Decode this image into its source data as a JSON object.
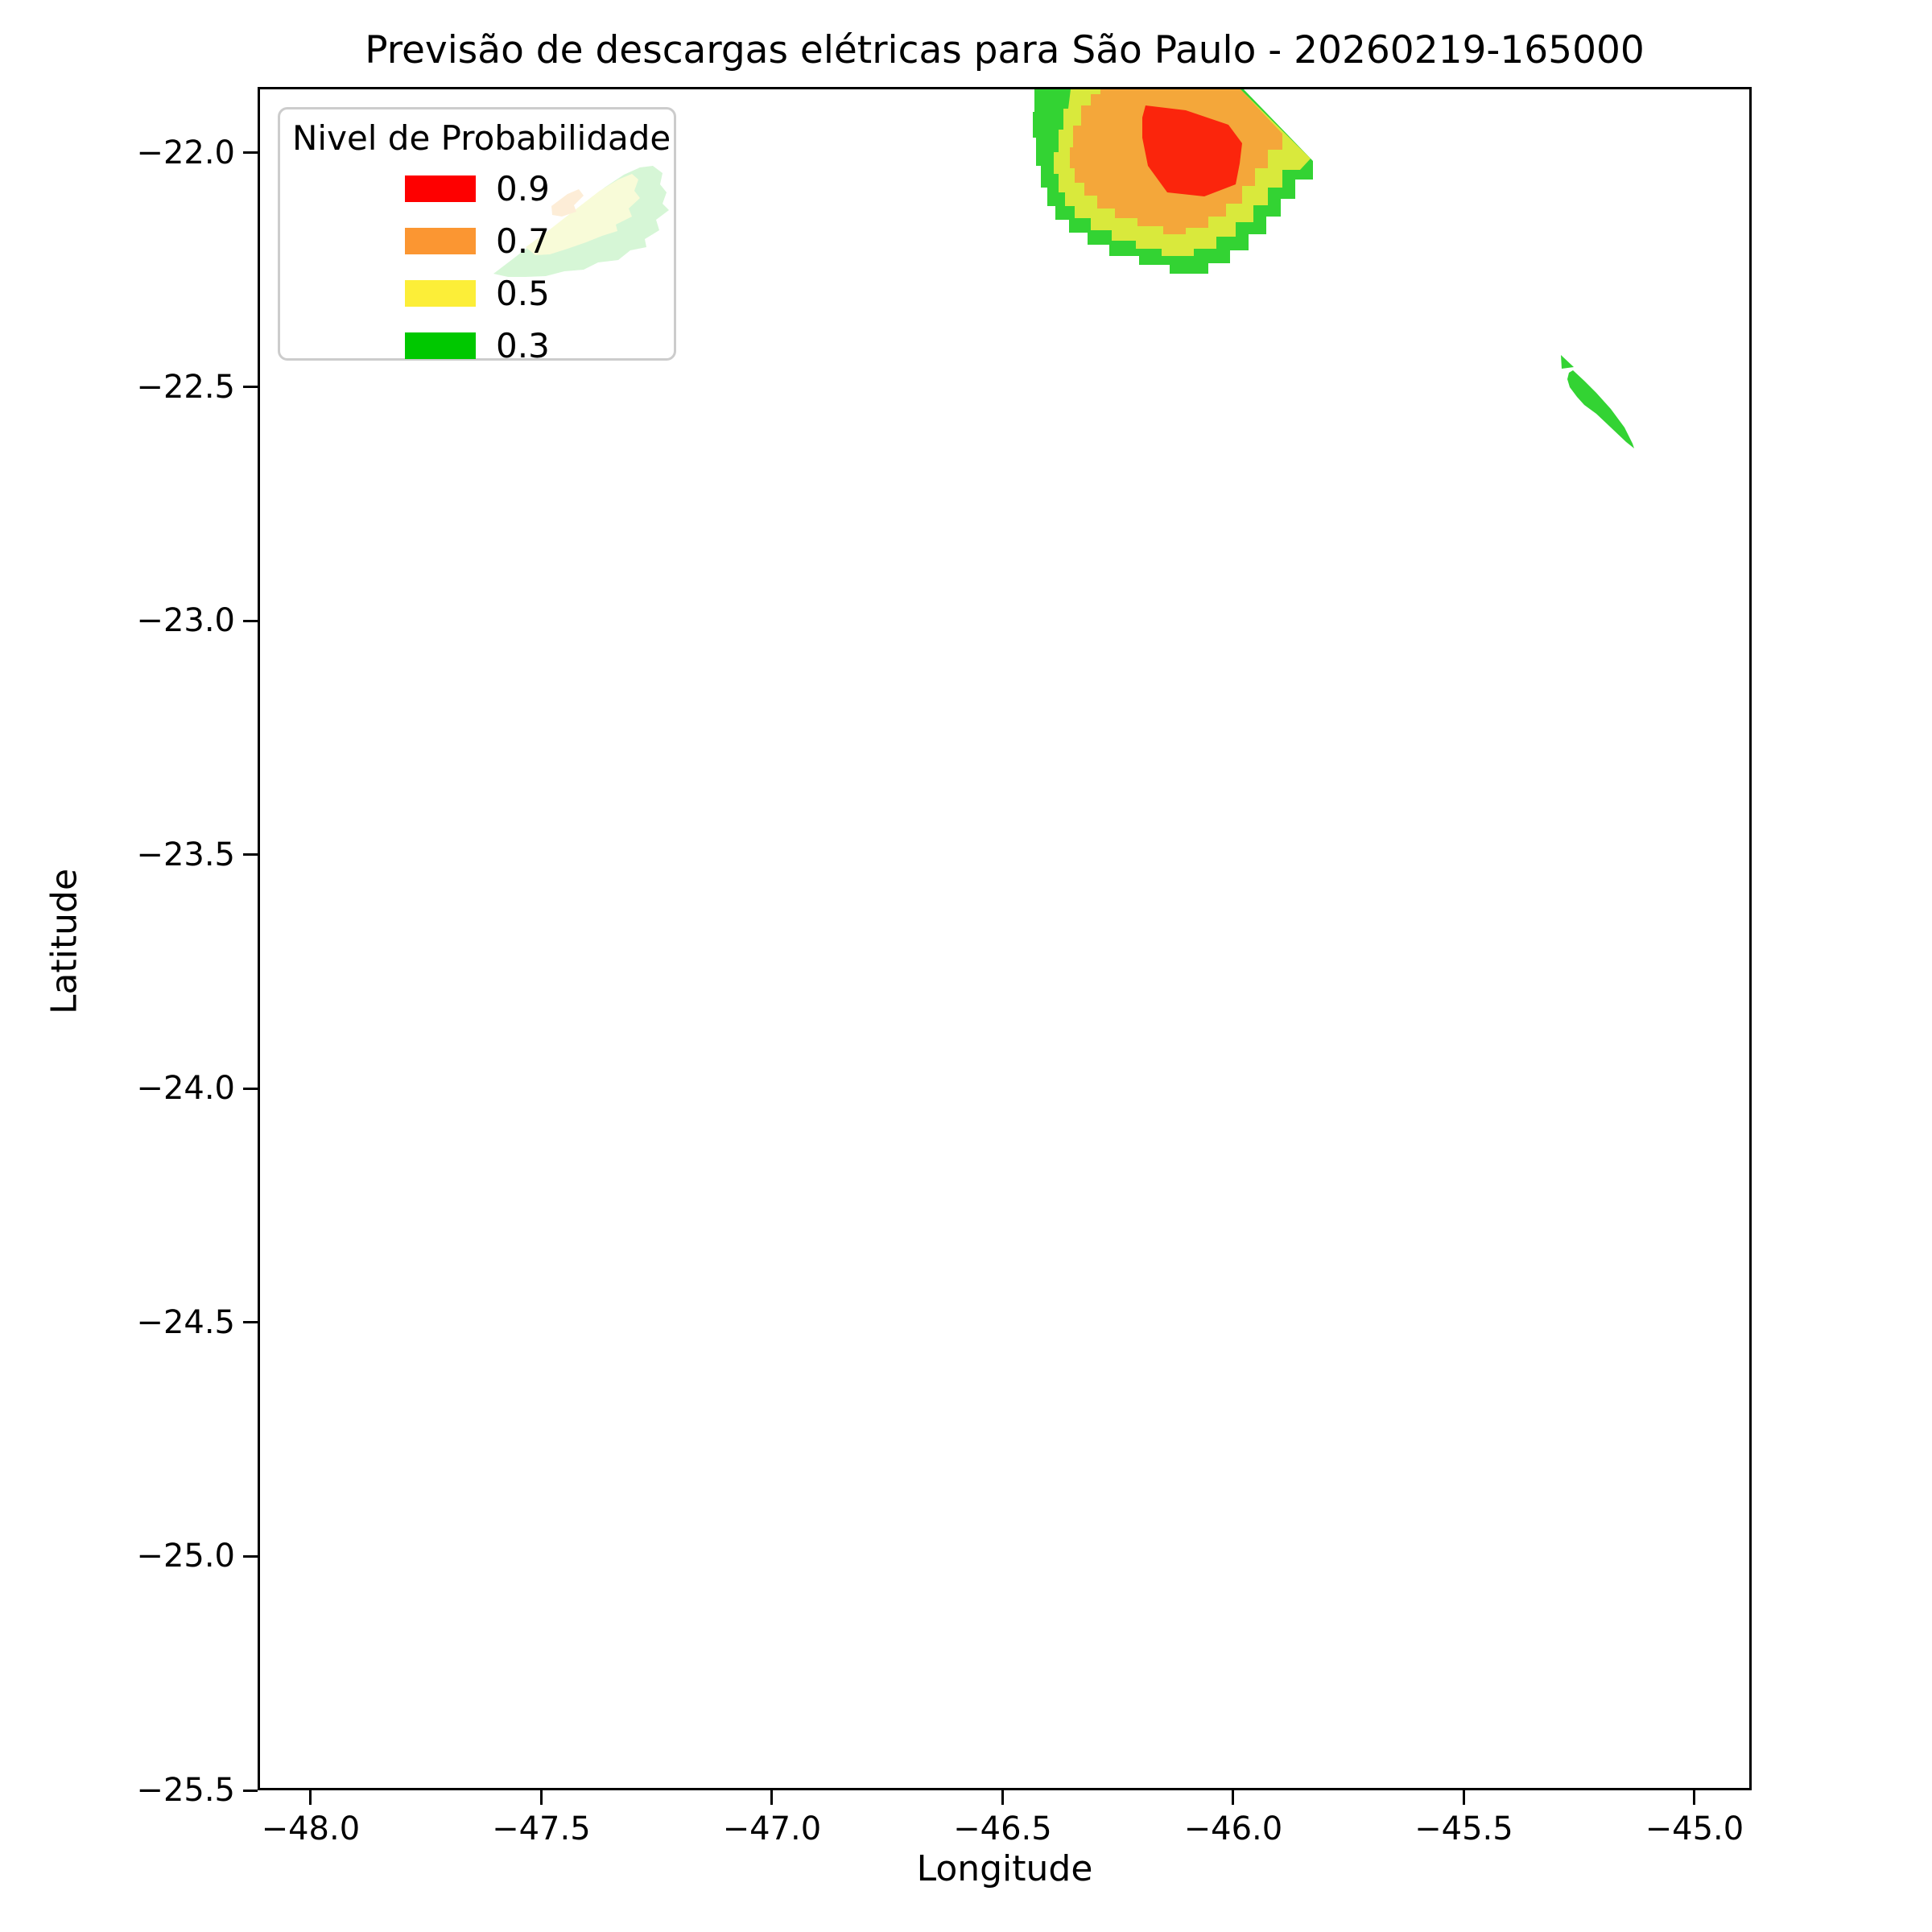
{
  "figure": {
    "title": "Previsão de descargas elétricas para São Paulo - 20260219-165000"
  },
  "axes": {
    "xlabel": "Longitude",
    "ylabel": "Latitude",
    "xlim": [
      -48.115,
      -44.876
    ],
    "ylim": [
      -25.5,
      -21.859
    ],
    "x_ticks": [
      {
        "value": -48.0,
        "label": "−48.0"
      },
      {
        "value": -47.5,
        "label": "−47.5"
      },
      {
        "value": -47.0,
        "label": "−47.0"
      },
      {
        "value": -46.5,
        "label": "−46.5"
      },
      {
        "value": -46.0,
        "label": "−46.0"
      },
      {
        "value": -45.5,
        "label": "−45.5"
      },
      {
        "value": -45.0,
        "label": "−45.0"
      }
    ],
    "y_ticks": [
      {
        "value": -22.0,
        "label": "−22.0"
      },
      {
        "value": -22.5,
        "label": "−22.5"
      },
      {
        "value": -23.0,
        "label": "−23.0"
      },
      {
        "value": -23.5,
        "label": "−23.5"
      },
      {
        "value": -24.0,
        "label": "−24.0"
      },
      {
        "value": -24.5,
        "label": "−24.5"
      },
      {
        "value": -25.0,
        "label": "−25.0"
      },
      {
        "value": -25.5,
        "label": "−25.5"
      }
    ]
  },
  "legend": {
    "title": "Nivel de Probabilidade",
    "frame": {
      "background": "rgba(255,255,255,0.8)",
      "border_color": "#cccccc"
    },
    "position": "upper left",
    "entries": [
      {
        "label": "0.9",
        "color": "#FE0000"
      },
      {
        "label": "0.7",
        "color": "#FB9632"
      },
      {
        "label": "0.5",
        "color": "#FCEE38"
      },
      {
        "label": "0.3",
        "color": "#00C800"
      }
    ]
  },
  "chart_data": {
    "type": "contour",
    "title": "Previsão de descargas elétricas para São Paulo - 20260219-165000",
    "xlabel": "Longitude",
    "ylabel": "Latitude",
    "xlim": [
      -48.115,
      -44.876
    ],
    "ylim": [
      -25.5,
      -21.859
    ],
    "grid": false,
    "legend_position": "upper left",
    "levels": [
      0.3,
      0.5,
      0.7,
      0.9
    ],
    "level_colors": {
      "0.3": "#00C800",
      "0.5": "#FCEE38",
      "0.7": "#FB9632",
      "0.9": "#FE0000"
    },
    "rendered_band_colors": {
      "0.3": "#33D333",
      "0.5": "#D9E93C",
      "0.7": "#F4A73A",
      "0.9": "#FB250C"
    },
    "cells": [
      {
        "id": "main-storm-cell",
        "lon_range": [
          -46.44,
          -45.83
        ],
        "lat_range": [
          -22.26,
          -21.86
        ],
        "max_probability": 0.9,
        "note": "large multi-level cell clipped by the top axis edge"
      },
      {
        "id": "cell-behind-legend",
        "lon_range": [
          -47.61,
          -47.22
        ],
        "lat_range": [
          -22.26,
          -22.03
        ],
        "max_probability": 0.7,
        "note": "appears faded because it lies behind the semi-transparent legend box"
      },
      {
        "id": "small-cell-east",
        "lon_range": [
          -45.29,
          -45.14
        ],
        "lat_range": [
          -22.62,
          -22.43
        ],
        "max_probability": 0.3,
        "note": "thin green sliver plus tiny detached triangle"
      }
    ],
    "render_polygons": [
      {
        "id": "legend-cell-band-0.3",
        "level": "0.3",
        "points": [
          [
            290,
            229
          ],
          [
            315,
            210
          ],
          [
            338,
            192
          ],
          [
            360,
            175
          ],
          [
            383,
            158
          ],
          [
            405,
            140
          ],
          [
            428,
            122
          ],
          [
            452,
            106
          ],
          [
            472,
            97
          ],
          [
            488,
            95
          ],
          [
            500,
            104
          ],
          [
            497,
            118
          ],
          [
            505,
            128
          ],
          [
            500,
            142
          ],
          [
            508,
            150
          ],
          [
            492,
            162
          ],
          [
            496,
            175
          ],
          [
            478,
            186
          ],
          [
            480,
            196
          ],
          [
            460,
            200
          ],
          [
            445,
            212
          ],
          [
            420,
            215
          ],
          [
            402,
            224
          ],
          [
            378,
            226
          ],
          [
            355,
            232
          ],
          [
            330,
            233
          ],
          [
            308,
            233
          ]
        ]
      },
      {
        "id": "legend-cell-band-0.5",
        "level": "0.5",
        "points": [
          [
            330,
            196
          ],
          [
            355,
            178
          ],
          [
            378,
            160
          ],
          [
            400,
            143
          ],
          [
            422,
            126
          ],
          [
            445,
            112
          ],
          [
            462,
            105
          ],
          [
            470,
            112
          ],
          [
            465,
            126
          ],
          [
            472,
            135
          ],
          [
            458,
            148
          ],
          [
            462,
            158
          ],
          [
            442,
            168
          ],
          [
            444,
            176
          ],
          [
            425,
            182
          ],
          [
            405,
            190
          ],
          [
            382,
            198
          ],
          [
            360,
            205
          ],
          [
            342,
            206
          ]
        ]
      },
      {
        "id": "legend-cell-band-0.7",
        "level": "0.7",
        "points": [
          [
            362,
            145
          ],
          [
            382,
            130
          ],
          [
            396,
            124
          ],
          [
            402,
            132
          ],
          [
            390,
            144
          ],
          [
            393,
            152
          ],
          [
            375,
            158
          ],
          [
            363,
            156
          ]
        ]
      },
      {
        "id": "main-cell-band-0.3",
        "level": "0.3",
        "points": [
          [
            962,
            0
          ],
          [
            1222,
            0
          ],
          [
            1308,
            89
          ],
          [
            1308,
            112
          ],
          [
            1286,
            112
          ],
          [
            1286,
            136
          ],
          [
            1268,
            136
          ],
          [
            1268,
            158
          ],
          [
            1250,
            158
          ],
          [
            1250,
            180
          ],
          [
            1228,
            180
          ],
          [
            1228,
            200
          ],
          [
            1205,
            200
          ],
          [
            1205,
            216
          ],
          [
            1178,
            216
          ],
          [
            1178,
            229
          ],
          [
            1130,
            229
          ],
          [
            1130,
            218
          ],
          [
            1092,
            218
          ],
          [
            1092,
            207
          ],
          [
            1055,
            207
          ],
          [
            1055,
            193
          ],
          [
            1028,
            193
          ],
          [
            1028,
            178
          ],
          [
            1005,
            178
          ],
          [
            1005,
            162
          ],
          [
            988,
            162
          ],
          [
            988,
            145
          ],
          [
            978,
            145
          ],
          [
            978,
            122
          ],
          [
            970,
            122
          ],
          [
            970,
            95
          ],
          [
            964,
            95
          ],
          [
            964,
            60
          ],
          [
            960,
            60
          ],
          [
            960,
            28
          ],
          [
            962,
            28
          ]
        ]
      },
      {
        "id": "main-cell-band-0.5",
        "level": "0.5",
        "points": [
          [
            1007,
            0
          ],
          [
            1218,
            0
          ],
          [
            1305,
            86
          ],
          [
            1292,
            100
          ],
          [
            1270,
            100
          ],
          [
            1270,
            122
          ],
          [
            1252,
            122
          ],
          [
            1252,
            144
          ],
          [
            1234,
            144
          ],
          [
            1234,
            165
          ],
          [
            1212,
            165
          ],
          [
            1212,
            183
          ],
          [
            1188,
            183
          ],
          [
            1188,
            198
          ],
          [
            1160,
            198
          ],
          [
            1160,
            207
          ],
          [
            1120,
            207
          ],
          [
            1120,
            198
          ],
          [
            1088,
            198
          ],
          [
            1088,
            188
          ],
          [
            1058,
            188
          ],
          [
            1058,
            175
          ],
          [
            1032,
            175
          ],
          [
            1032,
            160
          ],
          [
            1012,
            160
          ],
          [
            1012,
            145
          ],
          [
            1000,
            145
          ],
          [
            1000,
            128
          ],
          [
            992,
            128
          ],
          [
            992,
            105
          ],
          [
            986,
            105
          ],
          [
            986,
            78
          ],
          [
            992,
            78
          ],
          [
            992,
            50
          ],
          [
            998,
            50
          ],
          [
            998,
            24
          ],
          [
            1004,
            24
          ]
        ]
      },
      {
        "id": "main-cell-band-0.7",
        "level": "0.7",
        "points": [
          [
            1044,
            0
          ],
          [
            1218,
            0
          ],
          [
            1270,
            55
          ],
          [
            1270,
            75
          ],
          [
            1252,
            75
          ],
          [
            1252,
            98
          ],
          [
            1236,
            98
          ],
          [
            1236,
            120
          ],
          [
            1220,
            120
          ],
          [
            1220,
            142
          ],
          [
            1200,
            142
          ],
          [
            1200,
            158
          ],
          [
            1178,
            158
          ],
          [
            1178,
            172
          ],
          [
            1150,
            172
          ],
          [
            1150,
            180
          ],
          [
            1122,
            180
          ],
          [
            1122,
            170
          ],
          [
            1090,
            170
          ],
          [
            1090,
            160
          ],
          [
            1062,
            160
          ],
          [
            1062,
            148
          ],
          [
            1040,
            148
          ],
          [
            1040,
            132
          ],
          [
            1024,
            132
          ],
          [
            1024,
            116
          ],
          [
            1012,
            116
          ],
          [
            1012,
            98
          ],
          [
            1006,
            98
          ],
          [
            1006,
            72
          ],
          [
            1010,
            72
          ],
          [
            1010,
            45
          ],
          [
            1020,
            45
          ],
          [
            1020,
            20
          ],
          [
            1032,
            20
          ],
          [
            1032,
            6
          ],
          [
            1044,
            6
          ]
        ]
      },
      {
        "id": "main-cell-band-0.9",
        "level": "0.9",
        "points": [
          [
            1100,
            20
          ],
          [
            1150,
            26
          ],
          [
            1203,
            44
          ],
          [
            1220,
            67
          ],
          [
            1217,
            92
          ],
          [
            1212,
            118
          ],
          [
            1173,
            133
          ],
          [
            1127,
            128
          ],
          [
            1103,
            95
          ],
          [
            1096,
            60
          ],
          [
            1096,
            35
          ]
        ]
      },
      {
        "id": "small-cell-triangle-0.3",
        "level": "0.3",
        "points": [
          [
            1616,
            330
          ],
          [
            1632,
            345
          ],
          [
            1617,
            347
          ]
        ]
      },
      {
        "id": "small-cell-sliver-0.3",
        "level": "0.3",
        "points": [
          [
            1631,
            349
          ],
          [
            1645,
            362
          ],
          [
            1660,
            377
          ],
          [
            1678,
            397
          ],
          [
            1695,
            420
          ],
          [
            1705,
            440
          ],
          [
            1707,
            446
          ],
          [
            1697,
            438
          ],
          [
            1678,
            420
          ],
          [
            1660,
            403
          ],
          [
            1645,
            392
          ],
          [
            1636,
            382
          ],
          [
            1627,
            370
          ],
          [
            1624,
            360
          ],
          [
            1626,
            352
          ]
        ]
      }
    ]
  }
}
